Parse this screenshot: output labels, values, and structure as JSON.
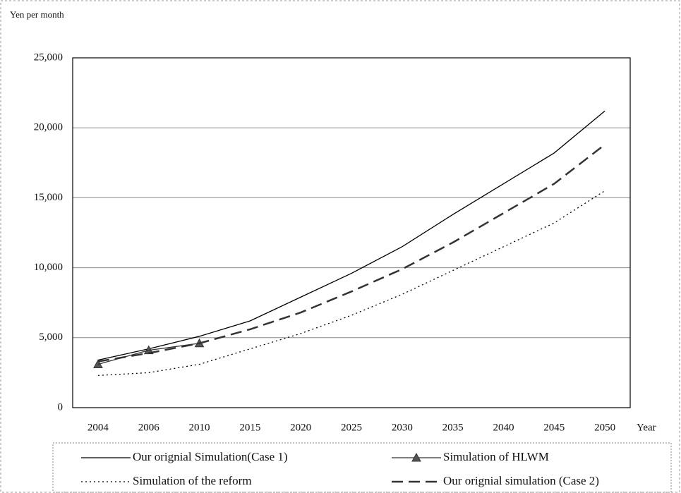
{
  "chart_data": {
    "type": "line",
    "y_label": "Yen per month",
    "x_label": "Year",
    "categories": [
      "2004",
      "2006",
      "2010",
      "2015",
      "2020",
      "2025",
      "2030",
      "2035",
      "2040",
      "2045",
      "2050"
    ],
    "series": [
      {
        "name": "Our orignial Simulation(Case 1)",
        "color": "#000000",
        "style": "solid",
        "values": [
          3400,
          4200,
          5100,
          6200,
          7900,
          9600,
          11500,
          13800,
          16000,
          18200,
          21200
        ]
      },
      {
        "name": "Simulation of HLWM",
        "color": "#333333",
        "style": "triangle",
        "values": [
          3100,
          4100,
          4600,
          null,
          null,
          null,
          null,
          null,
          null,
          null,
          null
        ]
      },
      {
        "name": "Simulation of the reform",
        "color": "#000000",
        "style": "dotted",
        "values": [
          2300,
          2500,
          3100,
          4200,
          5300,
          6600,
          8100,
          9800,
          11500,
          13200,
          15500
        ]
      },
      {
        "name": "Our orignial simulation (Case 2)",
        "color": "#333333",
        "style": "dashed",
        "values": [
          3300,
          3900,
          4600,
          5600,
          6800,
          8300,
          9900,
          11800,
          13900,
          16000,
          18800
        ]
      }
    ],
    "ylim": [
      0,
      25000
    ],
    "yticks": [
      0,
      {
        "value": 5000,
        "label": "5,000"
      },
      {
        "value": 10000,
        "label": "10,000"
      },
      {
        "value": 15000,
        "label": "15,000"
      },
      {
        "value": 20000,
        "label": "20,000"
      },
      {
        "value": 25000,
        "label": "25,000"
      }
    ],
    "grid": true,
    "legend": "bottom"
  }
}
